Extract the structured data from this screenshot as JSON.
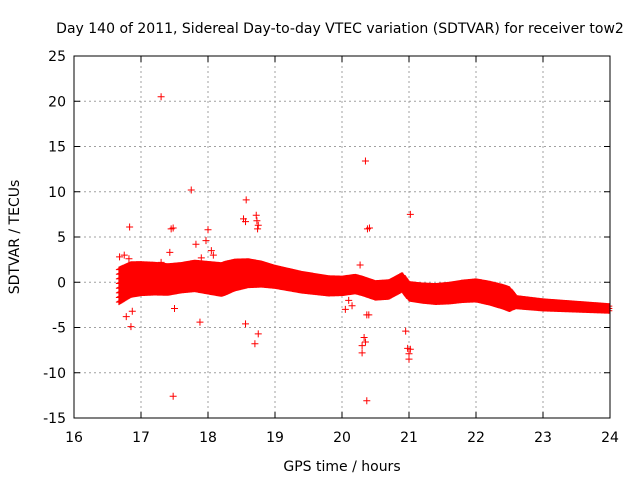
{
  "chart_data": {
    "type": "scatter",
    "title": "Day 140 of 2011, Sidereal Day-to-day VTEC variation (SDTVAR) for receiver tow2",
    "xlabel": "GPS time / hours",
    "ylabel": "SDTVAR / TECUs",
    "xlim": [
      16,
      24
    ],
    "ylim": [
      -15,
      25
    ],
    "xticks": [
      16,
      17,
      18,
      19,
      20,
      21,
      22,
      23,
      24
    ],
    "yticks": [
      -15,
      -10,
      -5,
      0,
      5,
      10,
      15,
      20,
      25
    ],
    "xtick_labels": [
      "16",
      "17",
      "18",
      "19",
      "20",
      "21",
      "22",
      "23",
      "24"
    ],
    "ytick_labels": [
      "-15",
      "-10",
      "-5",
      "0",
      "5",
      "10",
      "15",
      "20",
      "25"
    ],
    "grid": true,
    "legend": "none",
    "marker": "plus",
    "colors": {
      "series": "#ff0000",
      "axis": "#000000",
      "grid": "#a0a0a0"
    },
    "band_centerline": [
      [
        16.67,
        -0.4
      ],
      [
        16.85,
        0.3
      ],
      [
        17.0,
        0.4
      ],
      [
        17.2,
        0.4
      ],
      [
        17.4,
        0.3
      ],
      [
        17.6,
        0.5
      ],
      [
        17.8,
        0.7
      ],
      [
        18.0,
        0.5
      ],
      [
        18.2,
        0.3
      ],
      [
        18.4,
        0.8
      ],
      [
        18.6,
        1.0
      ],
      [
        18.8,
        0.9
      ],
      [
        19.0,
        0.6
      ],
      [
        19.2,
        0.3
      ],
      [
        19.4,
        0.0
      ],
      [
        19.6,
        -0.2
      ],
      [
        19.8,
        -0.4
      ],
      [
        20.0,
        -0.4
      ],
      [
        20.2,
        -0.2
      ],
      [
        20.3,
        -0.4
      ],
      [
        20.5,
        -0.9
      ],
      [
        20.7,
        -0.8
      ],
      [
        20.9,
        0.0
      ],
      [
        21.0,
        -1.0
      ],
      [
        21.2,
        -1.2
      ],
      [
        21.4,
        -1.3
      ],
      [
        21.6,
        -1.2
      ],
      [
        21.8,
        -1.0
      ],
      [
        22.0,
        -0.9
      ],
      [
        22.2,
        -1.2
      ],
      [
        22.4,
        -1.6
      ],
      [
        22.55,
        -2.0
      ],
      [
        22.6,
        -2.2
      ],
      [
        23.0,
        -2.5
      ],
      [
        23.5,
        -2.7
      ],
      [
        24.0,
        -2.9
      ]
    ],
    "band_halfwidth": [
      [
        16.67,
        1.8
      ],
      [
        17.0,
        1.6
      ],
      [
        17.6,
        1.4
      ],
      [
        18.25,
        1.6
      ],
      [
        19.0,
        1.0
      ],
      [
        20.0,
        0.8
      ],
      [
        21.0,
        0.8
      ],
      [
        22.0,
        1.0
      ],
      [
        22.5,
        1.1
      ],
      [
        22.6,
        0.45
      ],
      [
        24.0,
        0.25
      ]
    ],
    "outliers": [
      [
        17.3,
        20.5
      ],
      [
        17.75,
        10.2
      ],
      [
        18.57,
        9.1
      ],
      [
        20.35,
        13.4
      ],
      [
        16.83,
        6.1
      ],
      [
        17.45,
        5.9
      ],
      [
        17.48,
        6.0
      ],
      [
        18.53,
        7.0
      ],
      [
        18.56,
        6.7
      ],
      [
        18.72,
        7.4
      ],
      [
        18.73,
        6.8
      ],
      [
        18.75,
        6.3
      ],
      [
        18.74,
        5.9
      ],
      [
        20.38,
        5.9
      ],
      [
        20.41,
        6.0
      ],
      [
        21.02,
        7.5
      ],
      [
        18.0,
        5.8
      ],
      [
        17.97,
        4.6
      ],
      [
        17.82,
        4.2
      ],
      [
        18.05,
        3.5
      ],
      [
        18.08,
        3.0
      ],
      [
        17.9,
        2.7
      ],
      [
        17.43,
        3.3
      ],
      [
        17.3,
        2.2
      ],
      [
        20.27,
        1.9
      ],
      [
        16.78,
        -3.8
      ],
      [
        16.87,
        -3.2
      ],
      [
        16.85,
        -4.9
      ],
      [
        17.5,
        -2.9
      ],
      [
        17.88,
        -4.4
      ],
      [
        18.56,
        -4.6
      ],
      [
        18.75,
        -5.7
      ],
      [
        18.7,
        -6.8
      ],
      [
        17.48,
        -12.6
      ],
      [
        20.33,
        -6.1
      ],
      [
        20.3,
        -7.0
      ],
      [
        20.35,
        -6.6
      ],
      [
        20.3,
        -7.8
      ],
      [
        20.37,
        -13.1
      ],
      [
        20.37,
        -3.6
      ],
      [
        20.4,
        -3.6
      ],
      [
        20.95,
        -5.4
      ],
      [
        20.98,
        -7.3
      ],
      [
        21.0,
        -7.9
      ],
      [
        21.02,
        -7.4
      ],
      [
        21.0,
        -8.5
      ],
      [
        20.15,
        -2.6
      ],
      [
        20.05,
        -3.0
      ],
      [
        20.1,
        -2.0
      ],
      [
        20.9,
        0.1
      ],
      [
        16.68,
        2.8
      ],
      [
        16.75,
        3.0
      ],
      [
        16.82,
        2.6
      ]
    ]
  }
}
